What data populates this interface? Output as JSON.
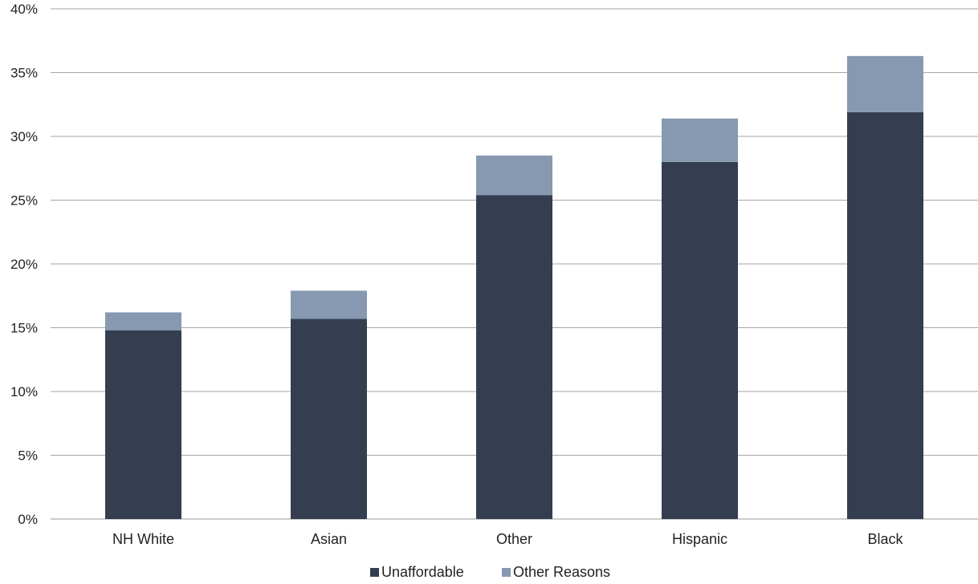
{
  "chart_data": {
    "type": "bar",
    "stacked": true,
    "categories": [
      "NH White",
      "Asian",
      "Other",
      "Hispanic",
      "Black"
    ],
    "series": [
      {
        "name": "Unaffordable",
        "values": [
          14.8,
          15.7,
          25.4,
          28.0,
          31.9
        ],
        "color": "#343e50"
      },
      {
        "name": "Other Reasons",
        "values": [
          1.4,
          2.2,
          3.1,
          3.4,
          4.4
        ],
        "color": "#8699b1"
      }
    ],
    "yticks": [
      "0%",
      "5%",
      "10%",
      "15%",
      "20%",
      "25%",
      "30%",
      "35%",
      "40%"
    ],
    "ylim": [
      0,
      40
    ],
    "grid": true,
    "legend_position": "bottom"
  }
}
